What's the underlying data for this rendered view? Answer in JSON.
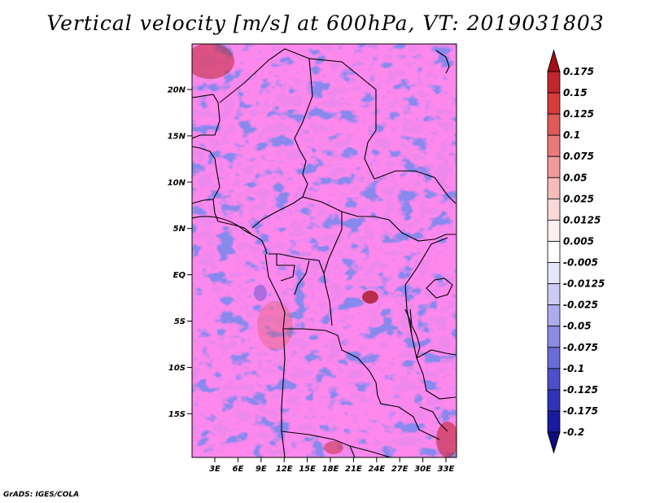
{
  "title": "Vertical velocity [m/s] at 600hPa, VT: 2019031803",
  "credit": "GrADS: IGES/COLA",
  "map": {
    "lat_ticks": [
      "20N",
      "15N",
      "10N",
      "5N",
      "EQ",
      "5S",
      "10S",
      "15S"
    ],
    "lon_ticks": [
      "3E",
      "6E",
      "9E",
      "12E",
      "15E",
      "18E",
      "21E",
      "24E",
      "27E",
      "30E",
      "33E"
    ]
  },
  "colorbar": {
    "labels": [
      "0.175",
      "0.15",
      "0.125",
      "0.1",
      "0.075",
      "0.05",
      "0.025",
      "0.0125",
      "0.005",
      "-0.005",
      "-0.0125",
      "-0.025",
      "-0.05",
      "-0.075",
      "-0.1",
      "-0.125",
      "-0.175",
      "-0.2"
    ],
    "colors": [
      "#a50f15",
      "#c0272d",
      "#d73c3c",
      "#e05a5a",
      "#e97a7a",
      "#f09a9a",
      "#f6bcbc",
      "#fad8d8",
      "#fdf0f0",
      "#ffffff",
      "#e6e6fa",
      "#cbcbf3",
      "#acacec",
      "#8c8ce3",
      "#6c6cd8",
      "#4e4ecb",
      "#3232b8",
      "#1a1aa0",
      "#0d0d80"
    ]
  }
}
